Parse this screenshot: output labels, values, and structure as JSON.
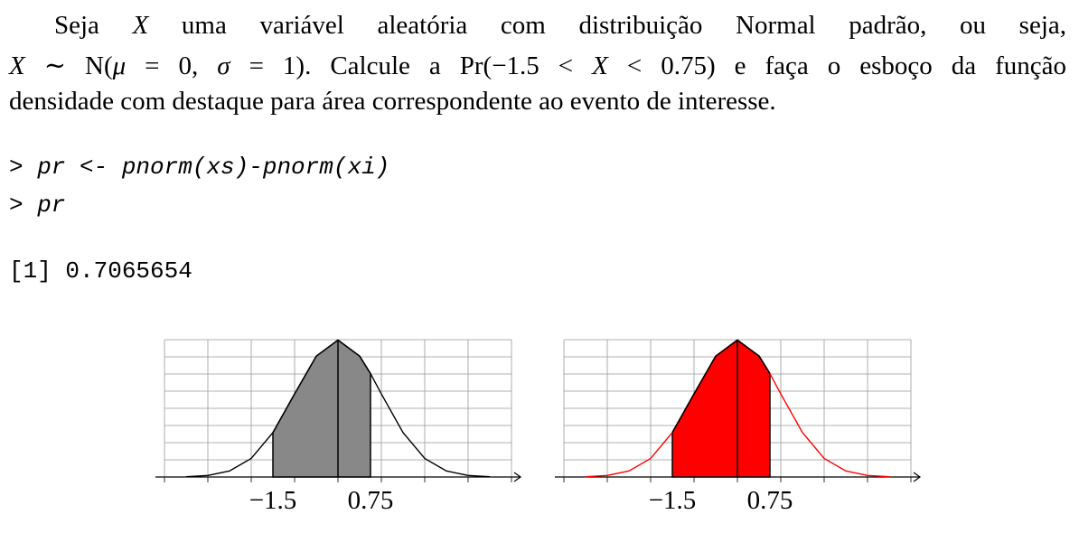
{
  "problem": [
    [
      {
        "text": "Seja ",
        "italic": false
      },
      {
        "text": "X",
        "italic": true
      },
      {
        "text": " uma variável aleatória com distribuição Normal padrão, ou seja,",
        "italic": false
      }
    ],
    [
      {
        "text": "X",
        "italic": true
      },
      {
        "text": " ∼ N(",
        "italic": false
      },
      {
        "text": "μ",
        "italic": true
      },
      {
        "text": " = 0, ",
        "italic": false
      },
      {
        "text": "σ",
        "italic": true
      },
      {
        "text": " = 1). Calcule a Pr(−1.5 < ",
        "italic": false
      },
      {
        "text": "X",
        "italic": true
      },
      {
        "text": " < 0.75) e faça o esboço da função",
        "italic": false
      }
    ],
    [
      {
        "text": "densidade com destaque para área correspondente ao evento de interesse.",
        "italic": false
      }
    ]
  ],
  "code": [
    "> pr <- pnorm(xs)-pnorm(xi)",
    "> pr"
  ],
  "output": "[1] 0.7065654",
  "figures": [
    {
      "type": "area",
      "x": [
        -3.5,
        -3,
        -2.5,
        -2,
        -1.5,
        -1,
        -0.5,
        0,
        0.5,
        0.75,
        1,
        1.5,
        2,
        2.5,
        3,
        3.5
      ],
      "density": [
        0.0009,
        0.0044,
        0.0175,
        0.054,
        0.1295,
        0.242,
        0.3521,
        0.3989,
        0.3521,
        0.3011,
        0.242,
        0.1295,
        0.054,
        0.0175,
        0.0044,
        0.0009
      ],
      "xlim": [
        -4,
        4
      ],
      "ylim": [
        0,
        0.4
      ],
      "grid_x": [
        -4,
        -3,
        -2,
        -1,
        0,
        1,
        2,
        3,
        4
      ],
      "grid_y": [
        0,
        0.05,
        0.1,
        0.15,
        0.2,
        0.25,
        0.3,
        0.35,
        0.4
      ],
      "xticks": [
        {
          "value": -1.5,
          "label": "−1.5"
        },
        {
          "value": 0.75,
          "label": "0.75"
        }
      ],
      "curve_color": "#000000",
      "fill_color": "#888888"
    },
    {
      "type": "area",
      "x": [
        -3.5,
        -3,
        -2.5,
        -2,
        -1.5,
        -1,
        -0.5,
        0,
        0.5,
        0.75,
        1,
        1.5,
        2,
        2.5,
        3,
        3.5
      ],
      "density": [
        0.0009,
        0.0044,
        0.0175,
        0.054,
        0.1295,
        0.242,
        0.3521,
        0.3989,
        0.3521,
        0.3011,
        0.242,
        0.1295,
        0.054,
        0.0175,
        0.0044,
        0.0009
      ],
      "xlim": [
        -4,
        4
      ],
      "ylim": [
        0,
        0.4
      ],
      "grid_x": [
        -4,
        -3,
        -2,
        -1,
        0,
        1,
        2,
        3,
        4
      ],
      "grid_y": [
        0,
        0.05,
        0.1,
        0.15,
        0.2,
        0.25,
        0.3,
        0.35,
        0.4
      ],
      "xticks": [
        {
          "value": -1.5,
          "label": "−1.5"
        },
        {
          "value": 0.75,
          "label": "0.75"
        }
      ],
      "curve_color": "#ff0000",
      "fill_color": "#ff0000"
    }
  ]
}
